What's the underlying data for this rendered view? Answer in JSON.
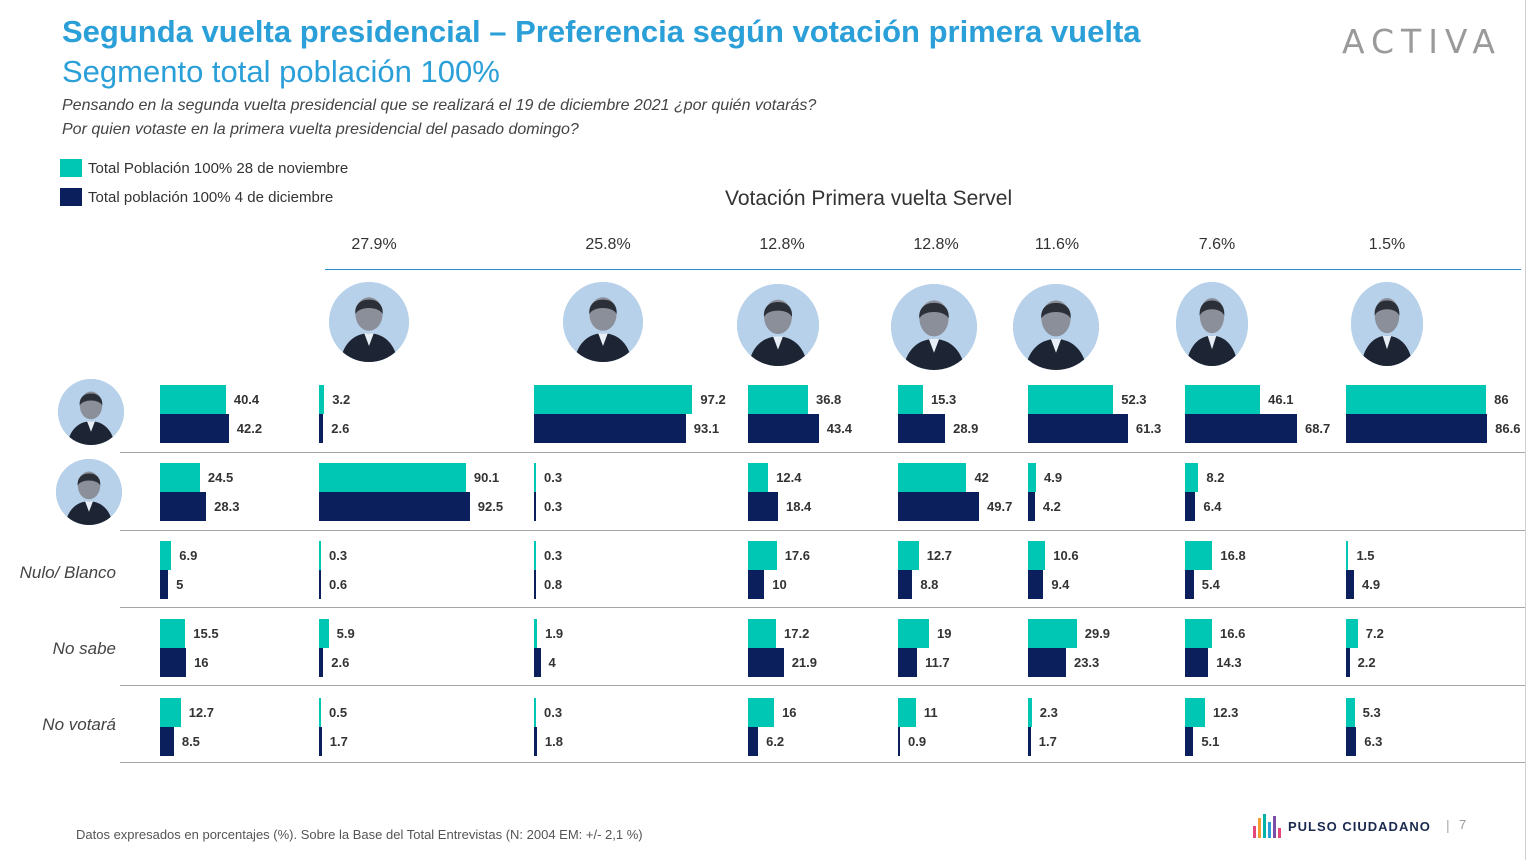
{
  "header": {
    "title": "Segunda vuelta presidencial – Preferencia según votación primera vuelta",
    "subtitle": "Segmento total población 100%",
    "question1": "Pensando en la segunda vuelta presidencial que se realizará el 19 de diciembre 2021 ¿por quién votarás?",
    "question2": "Por quien votaste en la primera vuelta presidencial del pasado domingo?"
  },
  "brand": {
    "logo_text": "ACTIVA"
  },
  "chart_data": {
    "type": "bar",
    "orientation": "horizontal",
    "title": "Votación Primera vuelta Servel",
    "colors": {
      "series_0": "#00c7b4",
      "series_1": "#0b1f5c"
    },
    "series": [
      {
        "name": "Total Población 100% 28 de noviembre"
      },
      {
        "name": "Total población 100% 4 de diciembre"
      }
    ],
    "columns": [
      {
        "label": "",
        "vote_share": ""
      },
      {
        "label": "",
        "vote_share": "27.9%"
      },
      {
        "label": "",
        "vote_share": "25.8%"
      },
      {
        "label": "",
        "vote_share": "12.8%"
      },
      {
        "label": "",
        "vote_share": "12.8%"
      },
      {
        "label": "",
        "vote_share": "11.6%"
      },
      {
        "label": "",
        "vote_share": "7.6%"
      },
      {
        "label": "",
        "vote_share": "1.5%"
      }
    ],
    "rows": [
      {
        "label": "",
        "values": [
          [
            40.4,
            42.2
          ],
          [
            3.2,
            2.6
          ],
          [
            97.2,
            93.1
          ],
          [
            36.8,
            43.4
          ],
          [
            15.3,
            28.9
          ],
          [
            52.3,
            61.3
          ],
          [
            46.1,
            68.7
          ],
          [
            86,
            86.6
          ]
        ]
      },
      {
        "label": "",
        "values": [
          [
            24.5,
            28.3
          ],
          [
            90.1,
            92.5
          ],
          [
            0.3,
            0.3
          ],
          [
            12.4,
            18.4
          ],
          [
            42,
            49.7
          ],
          [
            4.9,
            4.2
          ],
          [
            8.2,
            6.4
          ],
          [
            null,
            null
          ]
        ]
      },
      {
        "label": "Nulo/ Blanco",
        "values": [
          [
            6.9,
            5
          ],
          [
            0.3,
            0.6
          ],
          [
            0.3,
            0.8
          ],
          [
            17.6,
            10
          ],
          [
            12.7,
            8.8
          ],
          [
            10.6,
            9.4
          ],
          [
            16.8,
            5.4
          ],
          [
            1.5,
            4.9
          ]
        ]
      },
      {
        "label": "No sabe",
        "values": [
          [
            15.5,
            16
          ],
          [
            5.9,
            2.6
          ],
          [
            1.9,
            4
          ],
          [
            17.2,
            21.9
          ],
          [
            19,
            11.7
          ],
          [
            29.9,
            23.3
          ],
          [
            16.6,
            14.3
          ],
          [
            7.2,
            2.2
          ]
        ]
      },
      {
        "label": "No votará",
        "values": [
          [
            12.7,
            8.5
          ],
          [
            0.5,
            1.7
          ],
          [
            0.3,
            1.8
          ],
          [
            16,
            6.2
          ],
          [
            11,
            0.9
          ],
          [
            2.3,
            1.7
          ],
          [
            12.3,
            5.1
          ],
          [
            5.3,
            6.3
          ]
        ]
      }
    ],
    "xlim": [
      0,
      100
    ],
    "grid": false,
    "legend": "top-left"
  },
  "footer": {
    "note": "Datos expresados en porcentajes (%). Sobre la Base del Total Entrevistas (N: 2004  EM: +/- 2,1 %)",
    "brand": "PULSO CIUDADANO",
    "separator": "|",
    "page": "7"
  }
}
